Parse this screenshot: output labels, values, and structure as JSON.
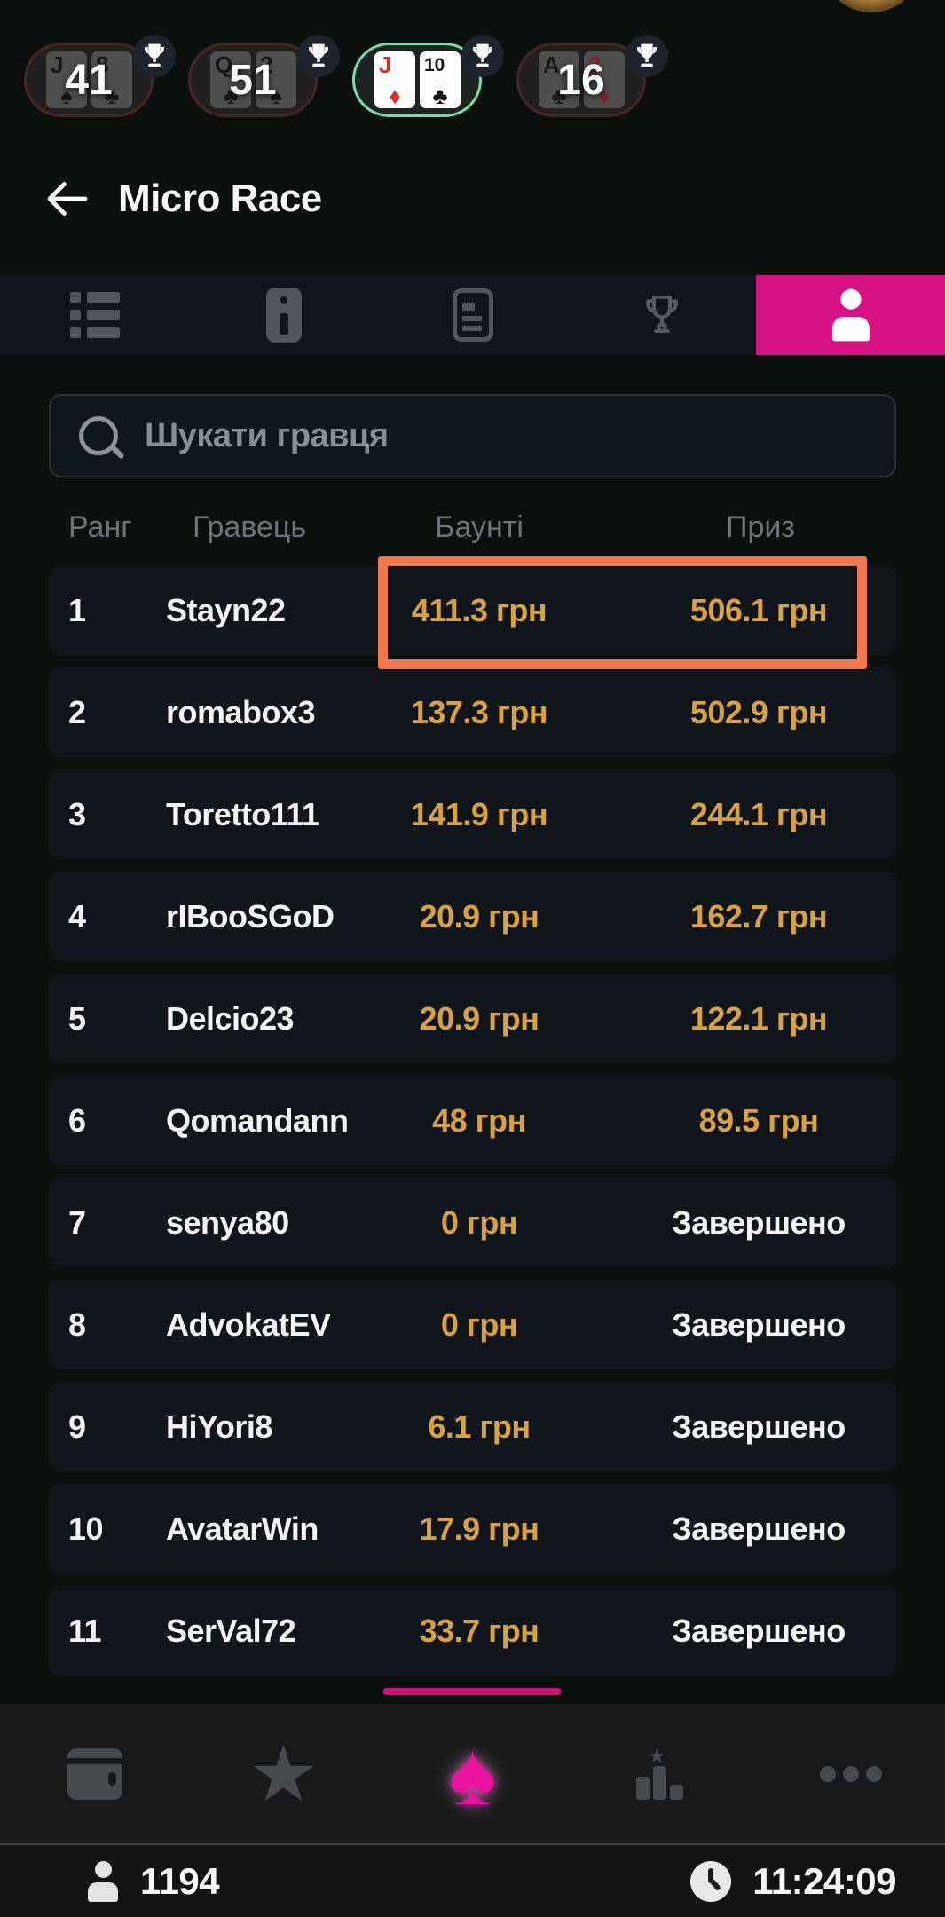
{
  "active_tables": [
    {
      "counter": "41",
      "selected": false,
      "cards": [
        {
          "rank": "J",
          "suit": "spade"
        },
        {
          "rank": "8",
          "suit": "club"
        }
      ]
    },
    {
      "counter": "51",
      "selected": false,
      "cards": [
        {
          "rank": "Q",
          "suit": "club"
        },
        {
          "rank": "2",
          "suit": "spade"
        }
      ]
    },
    {
      "counter": "",
      "selected": true,
      "cards": [
        {
          "rank": "J",
          "suit": "diamond"
        },
        {
          "rank": "10",
          "suit": "club"
        }
      ]
    },
    {
      "counter": "16",
      "selected": false,
      "cards": [
        {
          "rank": "A",
          "suit": "club"
        },
        {
          "rank": "3",
          "suit": "diamond"
        }
      ]
    }
  ],
  "header": {
    "title": "Micro Race",
    "back_icon": "arrow-left-icon"
  },
  "tabs": [
    {
      "icon": "list-icon",
      "active": false
    },
    {
      "icon": "info-icon",
      "active": false
    },
    {
      "icon": "news-icon",
      "active": false
    },
    {
      "icon": "trophy-icon",
      "active": false
    },
    {
      "icon": "person-icon",
      "active": true
    }
  ],
  "search": {
    "placeholder": "Шукати гравця",
    "icon": "search-icon"
  },
  "leaderboard": {
    "headers": [
      "Ранг",
      "Гравець",
      "Баунті",
      "Приз"
    ],
    "rows": [
      {
        "rank": "1",
        "player": "Stayn22",
        "bounty": "411.3 грн",
        "prize": "506.1 грн",
        "completed": false
      },
      {
        "rank": "2",
        "player": "romabox3",
        "bounty": "137.3 грн",
        "prize": "502.9 грн",
        "completed": false
      },
      {
        "rank": "3",
        "player": "Toretto111",
        "bounty": "141.9 грн",
        "prize": "244.1 грн",
        "completed": false
      },
      {
        "rank": "4",
        "player": "rIBooSGoD",
        "bounty": "20.9 грн",
        "prize": "162.7 грн",
        "completed": false
      },
      {
        "rank": "5",
        "player": "Delcio23",
        "bounty": "20.9 грн",
        "prize": "122.1 грн",
        "completed": false
      },
      {
        "rank": "6",
        "player": "Qomandann",
        "bounty": "48 грн",
        "prize": "89.5 грн",
        "completed": false
      },
      {
        "rank": "7",
        "player": "senya80",
        "bounty": "0 грн",
        "prize": "Завершено",
        "completed": true
      },
      {
        "rank": "8",
        "player": "AdvokatEV",
        "bounty": "0 грн",
        "prize": "Завершено",
        "completed": true
      },
      {
        "rank": "9",
        "player": "HiYori8",
        "bounty": "6.1 грн",
        "prize": "Завершено",
        "completed": true
      },
      {
        "rank": "10",
        "player": "AvatarWin",
        "bounty": "17.9 грн",
        "prize": "Завершено",
        "completed": true
      },
      {
        "rank": "11",
        "player": "SerVal72",
        "bounty": "33.7 грн",
        "prize": "Завершено",
        "completed": true
      }
    ]
  },
  "annotation": {
    "type": "highlight-box",
    "color": "#f4764b",
    "highlighted_row": "1"
  },
  "bottom_nav": [
    {
      "icon": "wallet-icon",
      "active": false
    },
    {
      "icon": "star-icon",
      "active": false
    },
    {
      "icon": "spade-icon",
      "active": true
    },
    {
      "icon": "podium-icon",
      "active": false
    },
    {
      "icon": "more-dots-icon",
      "active": false
    }
  ],
  "status_bar": {
    "players_online": "1194",
    "time": "11:24:09"
  },
  "colors": {
    "accent_pink": "#d61181",
    "spade_pink": "#ea12a0",
    "gold": "#d8a23e",
    "annotation_orange": "#f4764b",
    "row_bg": "#10151c",
    "tabbar_bg": "#10151b"
  }
}
